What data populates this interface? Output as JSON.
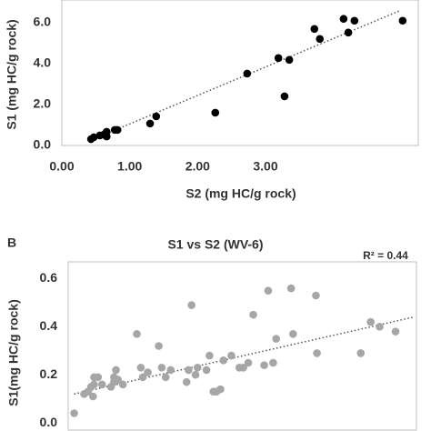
{
  "chart_data": [
    {
      "type": "scatter",
      "x_label": "S2 (mg HC/g rock)",
      "y_label": "S1 (mg HC/g rock)",
      "color": "#000000",
      "x": [
        0.43,
        0.47,
        0.56,
        0.62,
        0.66,
        0.66,
        0.78,
        0.82,
        1.3,
        1.39,
        2.26,
        2.73,
        3.19,
        3.28,
        3.35,
        3.72,
        3.8,
        4.15,
        4.22,
        4.31,
        5.02
      ],
      "values": [
        0.31,
        0.4,
        0.49,
        0.53,
        0.67,
        0.44,
        0.76,
        0.76,
        1.07,
        1.42,
        1.6,
        3.51,
        4.27,
        2.4,
        4.18,
        5.69,
        5.2,
        6.18,
        5.51,
        6.09,
        6.09
      ],
      "trendline": {
        "x": [
          0.4,
          4.98
        ],
        "y": [
          0.22,
          6.58
        ]
      },
      "xlim": [
        0,
        5.25
      ],
      "ylim": [
        0,
        7.1
      ],
      "xticks": [
        {
          "value": 0,
          "label": "0.00"
        },
        {
          "value": 1,
          "label": "1.00"
        },
        {
          "value": 2,
          "label": "2.00"
        },
        {
          "value": 3,
          "label": "3.00"
        }
      ],
      "yticks": [
        {
          "value": 0,
          "label": "0.0"
        },
        {
          "value": 2,
          "label": "2.0"
        },
        {
          "value": 4,
          "label": "4.0"
        },
        {
          "value": 6,
          "label": "6.0"
        }
      ],
      "grid": false
    },
    {
      "type": "scatter",
      "panel_label": "B",
      "title": "S1 vs S2 (WV-6)",
      "annotation": "R² = 0.44",
      "y_label": "S1(mg HC/g rock)",
      "color": "#a6a6a6",
      "x": [
        0.06,
        0.16,
        0.2,
        0.23,
        0.26,
        0.26,
        0.25,
        0.3,
        0.34,
        0.43,
        0.46,
        0.48,
        0.46,
        0.5,
        0.55,
        0.69,
        0.73,
        0.75,
        0.8,
        0.91,
        0.94,
        0.98,
        1.03,
        1.19,
        1.21,
        1.24,
        1.28,
        1.3,
        1.39,
        1.42,
        1.46,
        1.49,
        1.53,
        1.56,
        1.64,
        1.72,
        1.76,
        1.81,
        1.86,
        1.97,
        2.01,
        2.06,
        2.09,
        2.24,
        2.26,
        2.49,
        2.5,
        2.94,
        3.04,
        3.13,
        3.29
      ],
      "values": [
        0.04,
        0.12,
        0.13,
        0.15,
        0.19,
        0.16,
        0.11,
        0.19,
        0.16,
        0.15,
        0.19,
        0.22,
        0.17,
        0.18,
        0.16,
        0.37,
        0.23,
        0.19,
        0.21,
        0.32,
        0.23,
        0.19,
        0.22,
        0.17,
        0.22,
        0.49,
        0.2,
        0.23,
        0.22,
        0.28,
        0.13,
        0.13,
        0.14,
        0.26,
        0.28,
        0.23,
        0.23,
        0.25,
        0.45,
        0.24,
        0.55,
        0.25,
        0.35,
        0.56,
        0.37,
        0.53,
        0.29,
        0.29,
        0.42,
        0.4,
        0.38
      ],
      "trendline": {
        "x": [
          0.06,
          3.47
        ],
        "y": [
          0.12,
          0.44
        ]
      },
      "xlim": [
        0,
        3.5
      ],
      "ylim": [
        -0.03,
        0.67
      ],
      "yticks": [
        {
          "value": 0,
          "label": "0.0"
        },
        {
          "value": 0.2,
          "label": "0.2"
        },
        {
          "value": 0.4,
          "label": "0.4"
        },
        {
          "value": 0.6,
          "label": "0.6"
        }
      ],
      "grid": false
    }
  ]
}
